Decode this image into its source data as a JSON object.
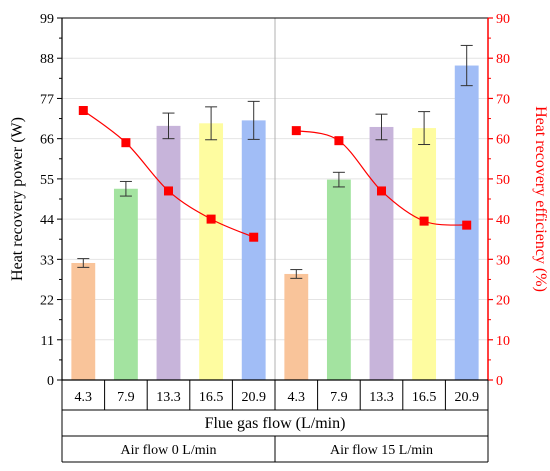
{
  "chart_data": {
    "type": "bar",
    "categories": [
      "4.3",
      "7.9",
      "13.3",
      "16.5",
      "20.9",
      "4.3",
      "7.9",
      "13.3",
      "16.5",
      "20.9"
    ],
    "groups": [
      {
        "label": "Air flow 0 L/min",
        "start": 0,
        "end": 4
      },
      {
        "label": "Air flow 15 L/min",
        "start": 5,
        "end": 9
      }
    ],
    "xlabel": "Flue gas flow (L/min)",
    "ylabel": "Heat recovery power (W)",
    "y2label": "Heat recovery efficiency (%)",
    "ylim": [
      0,
      99
    ],
    "y2lim": [
      0,
      90
    ],
    "yticks": [
      0,
      11,
      22,
      33,
      44,
      55,
      66,
      77,
      88,
      99
    ],
    "y2ticks": [
      0,
      10,
      20,
      30,
      40,
      50,
      60,
      70,
      80,
      90
    ],
    "bar_series": {
      "values": [
        32,
        52.3,
        69.5,
        70.2,
        71,
        29,
        54.8,
        69.2,
        68.9,
        86
      ],
      "errors": [
        1.2,
        2,
        3.5,
        4.5,
        5.2,
        1.2,
        2,
        3.5,
        4.5,
        5.5
      ],
      "colors": [
        "#f9c49a",
        "#a3e3a0",
        "#c7b4da",
        "#fefca0",
        "#a1bdf6",
        "#f9c49a",
        "#a3e3a0",
        "#c7b4da",
        "#fefca0",
        "#a1bdf6"
      ]
    },
    "line_series": {
      "axis": "right",
      "values": [
        67,
        59,
        47,
        40,
        35.5,
        62,
        59.5,
        47,
        39.5,
        38.5
      ],
      "color": "#ff0000",
      "marker": "square"
    },
    "grid": true
  }
}
